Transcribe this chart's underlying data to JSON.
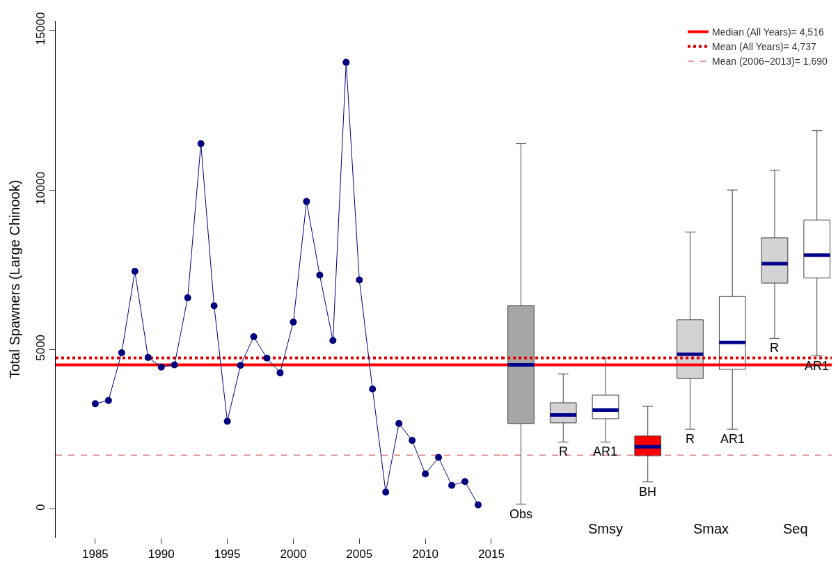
{
  "chart_data": [
    {
      "type": "line",
      "ylabel": "Total Spawners (Large Chinook)",
      "xlim": [
        1982,
        2015.8
      ],
      "xticks": [
        1985,
        1990,
        1995,
        2000,
        2005,
        2010,
        2015
      ],
      "ylim": [
        -900,
        15300
      ],
      "yticks": [
        0,
        5000,
        10000,
        15000
      ],
      "marker": "circle",
      "line_style": "solid",
      "series": [
        {
          "color": "#00007f",
          "x": [
            1985,
            1986,
            1987,
            1988,
            1989,
            1990,
            1991,
            1992,
            1993,
            1994,
            1995,
            1996,
            1997,
            1998,
            1999,
            2000,
            2001,
            2002,
            2003,
            2004,
            2005,
            2006,
            2007,
            2008,
            2009,
            2010,
            2011,
            2012,
            2013,
            2014
          ],
          "values": [
            3300,
            3400,
            4900,
            7450,
            4750,
            4450,
            4520,
            6620,
            11450,
            6370,
            2750,
            4500,
            5400,
            4730,
            4270,
            5860,
            9640,
            7330,
            5280,
            14000,
            7180,
            3760,
            530,
            2680,
            2150,
            1100,
            1620,
            740,
            860,
            130
          ]
        }
      ],
      "ref_lines": [
        {
          "axis": "y",
          "value": 4516,
          "color": "#ff0000",
          "line_style": "solid"
        },
        {
          "axis": "y",
          "value": 4737,
          "color": "#e00000",
          "line_style": "dotted"
        },
        {
          "axis": "y",
          "value": 1690,
          "color": "#d04040",
          "line_style": "dashed"
        }
      ]
    },
    {
      "type": "box",
      "categories": [
        "Obs",
        "R",
        "AR1",
        "BH",
        "R",
        "AR1",
        "R",
        "AR1"
      ],
      "ylim": [
        0,
        15000
      ],
      "yticks": [
        0,
        5000,
        10000,
        15000
      ],
      "tick_labels": "x",
      "legend": "top right",
      "colors": [
        "#a6a6a6",
        "#d3d3d3",
        "#ffffff",
        "#ff0000",
        "#d3d3d3",
        "#ffffff",
        "#d3d3d3",
        "#ffffff"
      ],
      "boxes": [
        {
          "low": 150,
          "q1": 2680,
          "median": 4516,
          "q3": 6370,
          "high": 11450
        },
        {
          "low": 2100,
          "q1": 2700,
          "median": 2950,
          "q3": 3330,
          "high": 4230
        },
        {
          "low": 2100,
          "q1": 2830,
          "median": 3100,
          "q3": 3570,
          "high": 4730
        },
        {
          "low": 850,
          "q1": 1670,
          "median": 1950,
          "q3": 2290,
          "high": 3220
        },
        {
          "low": 2500,
          "q1": 4090,
          "median": 4850,
          "q3": 5930,
          "high": 8680
        },
        {
          "low": 2500,
          "q1": 4380,
          "median": 5220,
          "q3": 6660,
          "high": 10000
        },
        {
          "low": 5350,
          "q1": 7080,
          "median": 7690,
          "q3": 8500,
          "high": 10620
        },
        {
          "low": 4800,
          "q1": 7240,
          "median": 7960,
          "q3": 9060,
          "high": 11860
        }
      ],
      "ref_lines": [
        {
          "axis": "y",
          "value": 4516,
          "label": "Median (All Years)= 4,516",
          "color": "#ff0000",
          "line_style": "solid"
        },
        {
          "axis": "y",
          "value": 4737,
          "label": "Mean (All Years)= 4,737",
          "color": "#e00000",
          "line_style": "dotted"
        },
        {
          "axis": "y",
          "value": 1690,
          "label": "Mean (2006−2013)= 1,690",
          "color": "#d04040",
          "line_style": "dashed"
        }
      ],
      "annotations": [
        "Smsy",
        "Smax",
        "Seq"
      ]
    }
  ]
}
